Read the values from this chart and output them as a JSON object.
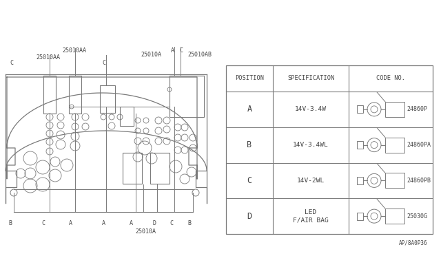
{
  "bg_color": "#ffffff",
  "line_color": "#7a7a7a",
  "text_color": "#444444",
  "part_number": "AP/8A0P36",
  "table": {
    "col_headers": [
      "POSITION",
      "SPECIFICATION",
      "CODE NO."
    ],
    "rows": [
      {
        "pos": "A",
        "spec": "14V-3.4W",
        "code": "24860P"
      },
      {
        "pos": "B",
        "spec": "14V-3.4WL",
        "code": "24860PA"
      },
      {
        "pos": "C",
        "spec": "14V-2WL",
        "code": "24860PB"
      },
      {
        "pos": "D",
        "spec": "LED\nF/AIR BAG",
        "code": "25030G"
      }
    ]
  }
}
